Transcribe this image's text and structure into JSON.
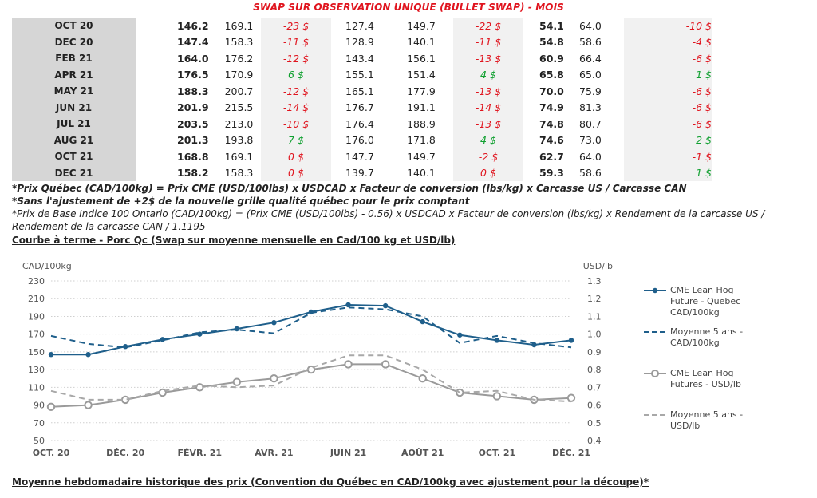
{
  "swap_title": "SWAP SUR OBSERVATION UNIQUE (BULLET SWAP) - MOIS",
  "table": {
    "rows": [
      {
        "month": "OCT 20",
        "a1": "146.2",
        "a2": "169.1",
        "d1": "-23 $",
        "d1s": "neg",
        "b1": "127.4",
        "b2": "149.7",
        "d2": "-22 $",
        "d2s": "neg",
        "c1": "54.1",
        "c2": "64.0",
        "d3": "-10 $",
        "d3s": "neg"
      },
      {
        "month": "DEC 20",
        "a1": "147.4",
        "a2": "158.3",
        "d1": "-11 $",
        "d1s": "neg",
        "b1": "128.9",
        "b2": "140.1",
        "d2": "-11 $",
        "d2s": "neg",
        "c1": "54.8",
        "c2": "58.6",
        "d3": "-4 $",
        "d3s": "neg"
      },
      {
        "month": "FEB 21",
        "a1": "164.0",
        "a2": "176.2",
        "d1": "-12 $",
        "d1s": "neg",
        "b1": "143.4",
        "b2": "156.1",
        "d2": "-13 $",
        "d2s": "neg",
        "c1": "60.9",
        "c2": "66.4",
        "d3": "-6 $",
        "d3s": "neg"
      },
      {
        "month": "APR 21",
        "a1": "176.5",
        "a2": "170.9",
        "d1": "6 $",
        "d1s": "pos",
        "b1": "155.1",
        "b2": "151.4",
        "d2": "4 $",
        "d2s": "pos",
        "c1": "65.8",
        "c2": "65.0",
        "d3": "1 $",
        "d3s": "pos"
      },
      {
        "month": "MAY 21",
        "a1": "188.3",
        "a2": "200.7",
        "d1": "-12 $",
        "d1s": "neg",
        "b1": "165.1",
        "b2": "177.9",
        "d2": "-13 $",
        "d2s": "neg",
        "c1": "70.0",
        "c2": "75.9",
        "d3": "-6 $",
        "d3s": "neg"
      },
      {
        "month": "JUN 21",
        "a1": "201.9",
        "a2": "215.5",
        "d1": "-14 $",
        "d1s": "neg",
        "b1": "176.7",
        "b2": "191.1",
        "d2": "-14 $",
        "d2s": "neg",
        "c1": "74.9",
        "c2": "81.3",
        "d3": "-6 $",
        "d3s": "neg"
      },
      {
        "month": "JUL 21",
        "a1": "203.5",
        "a2": "213.0",
        "d1": "-10 $",
        "d1s": "neg",
        "b1": "176.4",
        "b2": "188.9",
        "d2": "-13 $",
        "d2s": "neg",
        "c1": "74.8",
        "c2": "80.7",
        "d3": "-6 $",
        "d3s": "neg"
      },
      {
        "month": "AUG 21",
        "a1": "201.3",
        "a2": "193.8",
        "d1": "7 $",
        "d1s": "pos",
        "b1": "176.0",
        "b2": "171.8",
        "d2": "4 $",
        "d2s": "pos",
        "c1": "74.6",
        "c2": "73.0",
        "d3": "2 $",
        "d3s": "pos"
      },
      {
        "month": "OCT 21",
        "a1": "168.8",
        "a2": "169.1",
        "d1": "0 $",
        "d1s": "neg",
        "b1": "147.7",
        "b2": "149.7",
        "d2": "-2 $",
        "d2s": "neg",
        "c1": "62.7",
        "c2": "64.0",
        "d3": "-1 $",
        "d3s": "neg"
      },
      {
        "month": "DEC 21",
        "a1": "158.2",
        "a2": "158.3",
        "d1": "0 $",
        "d1s": "neg",
        "b1": "139.7",
        "b2": "140.1",
        "d2": "0 $",
        "d2s": "neg",
        "c1": "59.3",
        "c2": "58.6",
        "d3": "1 $",
        "d3s": "pos"
      }
    ]
  },
  "notes": {
    "n1": "*Prix Québec (CAD/100kg) = Prix CME (USD/100lbs) x USDCAD x Facteur de conversion (lbs/kg) x Carcasse US / Carcasse CAN",
    "n2": "*Sans l'ajustement de +2$ de la nouvelle grille qualité québec pour le prix comptant",
    "n3": "*Prix de Base Indice 100 Ontario (CAD/100kg) = (Prix CME (USD/100lbs) - 0.56) x USDCAD x Facteur de conversion (lbs/kg) x Rendement de la carcasse US / Rendement de la carcasse CAN / 1.1195"
  },
  "chart_title": "Courbe à terme - Porc Qc (Swap sur moyenne mensuelle en Cad/100 kg et USD/lb)",
  "bottom_title": "Moyenne hebdomadaire historique des prix (Convention du Québec en CAD/100kg avec ajustement pour la découpe)*",
  "chart_data": {
    "type": "line",
    "ylabel": "CAD/100kg",
    "y2label": "USD/lb",
    "ylim": [
      50,
      230
    ],
    "y2lim": [
      0.4,
      1.3
    ],
    "yticks": [
      "230",
      "210",
      "190",
      "170",
      "150",
      "130",
      "110",
      "90",
      "70",
      "50"
    ],
    "y2ticks": [
      "1.3",
      "1.2",
      "1.1",
      "1.0",
      "0.9",
      "0.8",
      "0.7",
      "0.6",
      "0.5",
      "0.4"
    ],
    "x_labels": [
      "OCT. 20",
      "DÉC. 20",
      "FÉVR. 21",
      "AVR. 21",
      "JUIN 21",
      "AOÛT 21",
      "OCT. 21",
      "DÉC. 21"
    ],
    "months": [
      "2020-10",
      "2020-11",
      "2020-12",
      "2021-01",
      "2021-02",
      "2021-03",
      "2021-04",
      "2021-05",
      "2021-06",
      "2021-07",
      "2021-08",
      "2021-09",
      "2021-10",
      "2021-11",
      "2021-12"
    ],
    "series": [
      {
        "name": "CME Lean Hog Future - Quebec CAD/100kg",
        "axis": "left",
        "style": "solid-marker",
        "color": "#1f5f8b",
        "values": [
          147,
          147,
          156,
          164,
          170,
          176,
          183,
          195,
          203,
          202,
          184,
          169,
          163,
          158,
          163
        ]
      },
      {
        "name": "Moyenne 5 ans - CAD/100kg",
        "axis": "left",
        "style": "dashed",
        "color": "#1f5f8b",
        "values": [
          168,
          159,
          155,
          163,
          172,
          175,
          171,
          194,
          200,
          198,
          190,
          160,
          168,
          160,
          155
        ]
      },
      {
        "name": "CME Lean Hog Futures - USD/lb",
        "axis": "right",
        "style": "solid-marker",
        "color": "#9a9a9a",
        "values": [
          0.59,
          0.6,
          0.63,
          0.67,
          0.7,
          0.73,
          0.75,
          0.8,
          0.83,
          0.83,
          0.75,
          0.67,
          0.65,
          0.63,
          0.64
        ]
      },
      {
        "name": "Moyenne 5 ans - USD/lb",
        "axis": "right",
        "style": "dashed",
        "color": "#a8a8a8",
        "values": [
          0.68,
          0.63,
          0.63,
          0.68,
          0.71,
          0.7,
          0.71,
          0.81,
          0.88,
          0.88,
          0.8,
          0.67,
          0.68,
          0.63,
          0.62
        ]
      }
    ],
    "legend_position": "right",
    "grid": "horizontal-dotted"
  }
}
